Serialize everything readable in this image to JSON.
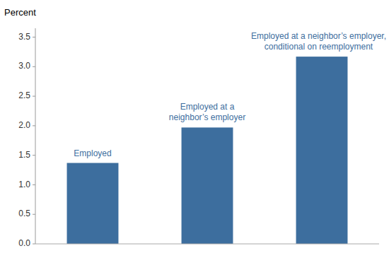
{
  "chart_data": {
    "type": "bar",
    "ylabel": "Percent",
    "categories": [
      null,
      null,
      null
    ],
    "values": [
      1.37,
      1.97,
      3.17
    ],
    "color": "#3d6e9e",
    "annotations": [
      "Employed",
      "Employed at a\nneighbor’s employer",
      "Employed at a neighbor’s employer,\nconditional on reemployment"
    ],
    "ylim": [
      0,
      3.65
    ],
    "yticks": [
      {
        "value": 0.0,
        "label": "0.0"
      },
      0.5,
      {
        "value": 1.0,
        "label": "1.0"
      },
      1.5,
      {
        "value": 2.0,
        "label": "2.0"
      },
      2.5,
      {
        "value": 3.0,
        "label": "3.0"
      },
      3.5
    ],
    "grid": false
  }
}
